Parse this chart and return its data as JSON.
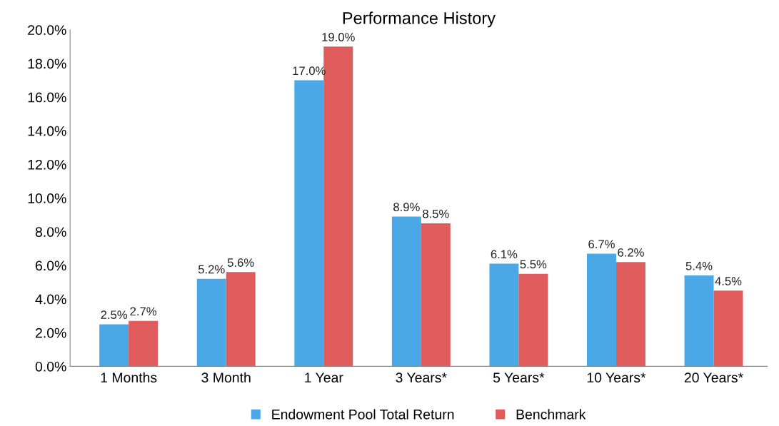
{
  "chart_data": {
    "type": "bar",
    "title": "Performance History",
    "categories": [
      "1 Months",
      "3 Month",
      "1 Year",
      "3 Years*",
      "5 Years*",
      "10 Years*",
      "20 Years*"
    ],
    "series": [
      {
        "name": "Endowment Pool Total Return",
        "color": "#4aa8e6",
        "values": [
          2.5,
          5.2,
          17.0,
          8.9,
          6.1,
          6.7,
          5.4
        ],
        "value_labels": [
          "2.5%",
          "5.2%",
          "17.0%",
          "8.9%",
          "6.1%",
          "6.7%",
          "5.4%"
        ]
      },
      {
        "name": "Benchmark",
        "color": "#e05c5c",
        "values": [
          2.7,
          5.6,
          19.0,
          8.5,
          5.5,
          6.2,
          4.5
        ],
        "value_labels": [
          "2.7%",
          "5.6%",
          "19.0%",
          "8.5%",
          "5.5%",
          "6.2%",
          "4.5%"
        ]
      }
    ],
    "ylim": [
      0,
      20
    ],
    "yticks": [
      {
        "value": 0,
        "label": "0.0%"
      },
      {
        "value": 2,
        "label": "2.0%"
      },
      {
        "value": 4,
        "label": "4.0%"
      },
      {
        "value": 6,
        "label": "6.0%"
      },
      {
        "value": 8,
        "label": "8.0%"
      },
      {
        "value": 10,
        "label": "10.0%"
      },
      {
        "value": 12,
        "label": "12.0%"
      },
      {
        "value": 14,
        "label": "14.0%"
      },
      {
        "value": 16,
        "label": "16.0%"
      },
      {
        "value": 18,
        "label": "18.0%"
      },
      {
        "value": 20,
        "label": "20.0%"
      }
    ],
    "grid": false,
    "legend": "bottom"
  }
}
